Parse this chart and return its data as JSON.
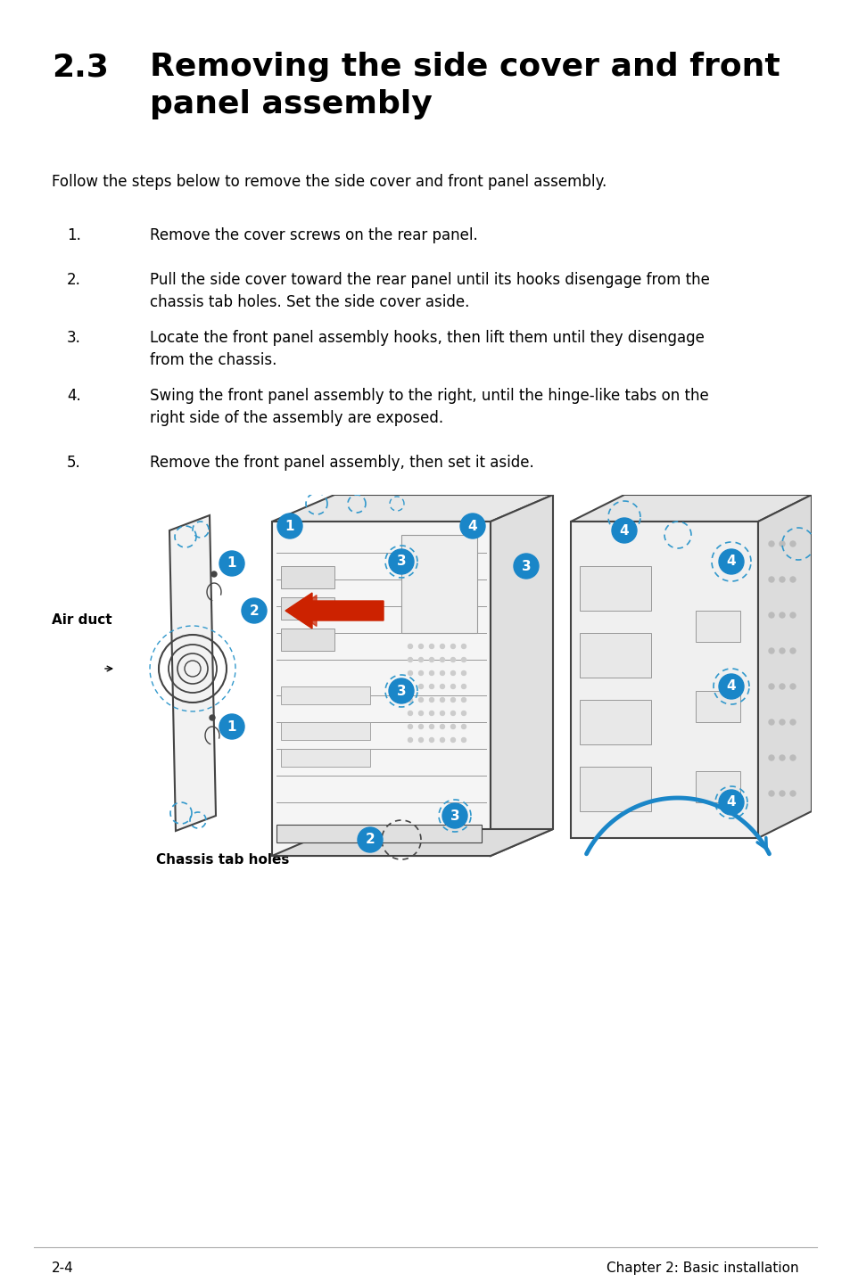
{
  "title_number": "2.3",
  "title_text": "Removing the side cover and front\npanel assembly",
  "intro_text": "Follow the steps below to remove the side cover and front panel assembly.",
  "steps": [
    [
      "1.",
      "Remove the cover screws on the rear panel."
    ],
    [
      "2.",
      "Pull the side cover toward the rear panel until its hooks disengage from the\nchassis tab holes. Set the side cover aside."
    ],
    [
      "3.",
      "Locate the front panel assembly hooks, then lift them until they disengage\nfrom the chassis."
    ],
    [
      "4.",
      "Swing the front panel assembly to the right, until the hinge-like tabs on the\nright side of the assembly are exposed."
    ],
    [
      "5.",
      "Remove the front panel assembly, then set it aside."
    ]
  ],
  "footer_left": "2-4",
  "footer_right": "Chapter 2: Basic installation",
  "bg": "#ffffff",
  "fg": "#000000",
  "blue": "#1a86c8",
  "dblue": "#3399cc",
  "red": "#cc2200",
  "gray": "#999999",
  "dgray": "#444444"
}
